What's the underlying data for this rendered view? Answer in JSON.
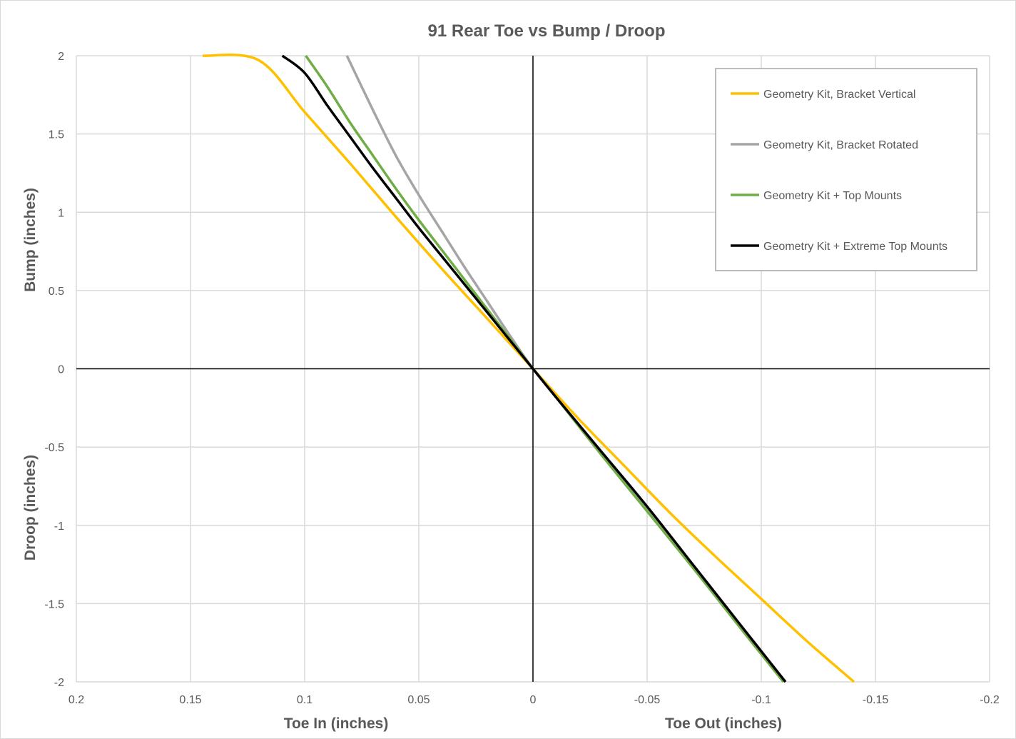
{
  "chart_data": {
    "type": "line",
    "title": "91 Rear Toe vs Bump / Droop",
    "x_axis_labels": [
      "Toe In (inches)",
      "Toe Out (inches)"
    ],
    "y_axis_labels": [
      "Bump (inches)",
      "Droop (inches)"
    ],
    "xlim": [
      0.2,
      -0.2
    ],
    "ylim": [
      -2,
      2
    ],
    "x_reversed": true,
    "x_ticks": [
      "0.2",
      "0.15",
      "0.1",
      "0.05",
      "0",
      "-0.05",
      "-0.1",
      "-0.15",
      "-0.2"
    ],
    "y_ticks": [
      "2",
      "1.5",
      "1",
      "0.5",
      "0",
      "-0.5",
      "-1",
      "-1.5",
      "-2"
    ],
    "grid": true,
    "legend_position": "top-right",
    "series": [
      {
        "name": "Geometry Kit, Bracket Vertical",
        "color": "#FFC000",
        "x": [
          -0.1406,
          -0.12,
          -0.1,
          -0.08,
          -0.06,
          -0.04,
          -0.02,
          0,
          0.02,
          0.04,
          0.06,
          0.08,
          0.1,
          0.12,
          0.1447
        ],
        "y": [
          -2,
          -1.74,
          -1.47,
          -1.2,
          -0.92,
          -0.62,
          -0.32,
          0,
          0.32,
          0.64,
          0.97,
          1.31,
          1.64,
          1.97,
          2
        ]
      },
      {
        "name": "Geometry Kit, Bracket Rotated",
        "color": "#A5A5A5",
        "x": [
          -0.1106,
          -0.09,
          -0.07,
          -0.05,
          -0.03,
          -0.01,
          0,
          0.01,
          0.02,
          0.03,
          0.04,
          0.05,
          0.06,
          0.07,
          0.0815
        ],
        "y": [
          -2,
          -1.63,
          -1.27,
          -0.9,
          -0.54,
          -0.18,
          0,
          0.21,
          0.43,
          0.65,
          0.88,
          1.11,
          1.36,
          1.65,
          2
        ]
      },
      {
        "name": "Geometry Kit + Top Mounts",
        "color": "#70AD47",
        "x": [
          -0.1097,
          -0.09,
          -0.07,
          -0.05,
          -0.03,
          -0.01,
          0,
          0.01,
          0.02,
          0.03,
          0.04,
          0.05,
          0.06,
          0.07,
          0.08,
          0.09,
          0.0995
        ],
        "y": [
          -2,
          -1.64,
          -1.27,
          -0.91,
          -0.55,
          -0.18,
          0,
          0.19,
          0.38,
          0.57,
          0.76,
          0.95,
          1.15,
          1.36,
          1.57,
          1.8,
          2
        ]
      },
      {
        "name": "Geometry Kit + Extreme Top Mounts",
        "color": "#000000",
        "x": [
          -0.1106,
          -0.09,
          -0.07,
          -0.05,
          -0.03,
          -0.01,
          0,
          0.01,
          0.02,
          0.03,
          0.04,
          0.05,
          0.06,
          0.07,
          0.08,
          0.09,
          0.1,
          0.1098
        ],
        "y": [
          -2,
          -1.62,
          -1.25,
          -0.88,
          -0.53,
          -0.18,
          0,
          0.18,
          0.36,
          0.54,
          0.72,
          0.9,
          1.09,
          1.28,
          1.48,
          1.68,
          1.89,
          2
        ]
      }
    ]
  }
}
